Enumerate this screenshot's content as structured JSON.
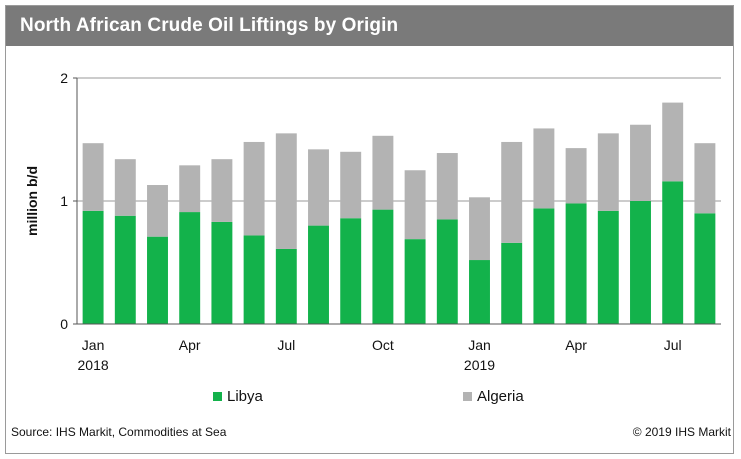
{
  "header": {
    "title": "North African Crude Oil Liftings by Origin"
  },
  "footer": {
    "source": "Source: IHS Markit, Commodities at Sea",
    "copyright": "© 2019 IHS Markit"
  },
  "colors": {
    "libya": "#13b24b",
    "algeria": "#b3b3b3",
    "title_bar": "#7a7a7a"
  },
  "chart_data": {
    "type": "bar",
    "stacked": true,
    "title": "North African Crude Oil Liftings by Origin",
    "xlabel": "",
    "ylabel": "million b/d",
    "ylim": [
      0,
      2
    ],
    "yticks": [
      0,
      1,
      2
    ],
    "grid": true,
    "legend_position": "bottom",
    "categories": [
      "2018-01",
      "2018-02",
      "2018-03",
      "2018-04",
      "2018-05",
      "2018-06",
      "2018-07",
      "2018-08",
      "2018-09",
      "2018-10",
      "2018-11",
      "2018-12",
      "2019-01",
      "2019-02",
      "2019-03",
      "2019-04",
      "2019-05",
      "2019-06",
      "2019-07",
      "2019-08"
    ],
    "xtick_labels": [
      {
        "index": 0,
        "line1": "Jan",
        "line2": "2018"
      },
      {
        "index": 3,
        "line1": "Apr",
        "line2": ""
      },
      {
        "index": 6,
        "line1": "Jul",
        "line2": ""
      },
      {
        "index": 9,
        "line1": "Oct",
        "line2": ""
      },
      {
        "index": 12,
        "line1": "Jan",
        "line2": "2019"
      },
      {
        "index": 15,
        "line1": "Apr",
        "line2": ""
      },
      {
        "index": 18,
        "line1": "Jul",
        "line2": ""
      }
    ],
    "series": [
      {
        "name": "Libya",
        "values": [
          0.92,
          0.88,
          0.71,
          0.91,
          0.83,
          0.72,
          0.61,
          0.8,
          0.86,
          0.93,
          0.69,
          0.85,
          0.52,
          0.66,
          0.94,
          0.98,
          0.92,
          1.0,
          1.16,
          0.9
        ]
      },
      {
        "name": "Algeria",
        "values": [
          0.55,
          0.46,
          0.42,
          0.38,
          0.51,
          0.76,
          0.94,
          0.62,
          0.54,
          0.6,
          0.56,
          0.54,
          0.51,
          0.82,
          0.65,
          0.45,
          0.63,
          0.62,
          0.64,
          0.57
        ]
      }
    ]
  }
}
